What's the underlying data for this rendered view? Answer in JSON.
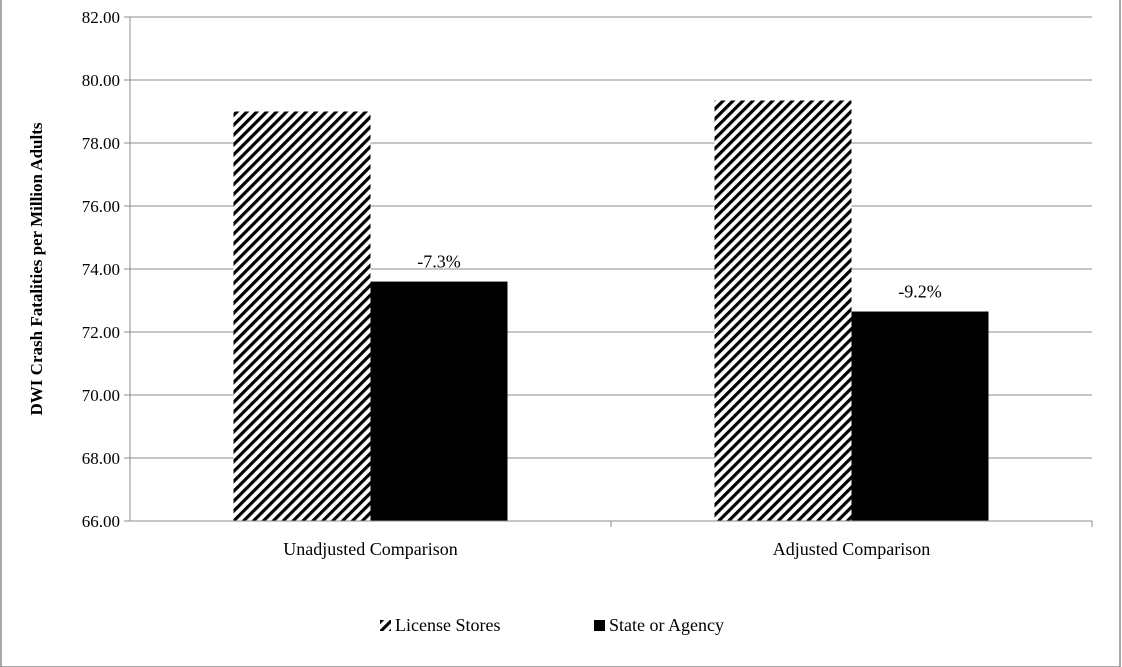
{
  "chart_data": {
    "type": "bar",
    "title": "",
    "xlabel": "",
    "ylabel": "DWI Crash Fatalities per Million Adults",
    "ylim": [
      66,
      82
    ],
    "yticks": [
      "66.00",
      "68.00",
      "70.00",
      "72.00",
      "74.00",
      "76.00",
      "78.00",
      "80.00",
      "82.00"
    ],
    "categories": [
      "Unadjusted Comparison",
      "Adjusted Comparison"
    ],
    "series": [
      {
        "name": "License Stores",
        "values": [
          79.0,
          79.35
        ],
        "fill": "hatch"
      },
      {
        "name": "State or Agency",
        "values": [
          73.6,
          72.65
        ],
        "fill": "#000000"
      }
    ],
    "data_labels": [
      "-7.3%",
      "-9.2%"
    ],
    "grid": true,
    "legend_position": "bottom-center"
  }
}
